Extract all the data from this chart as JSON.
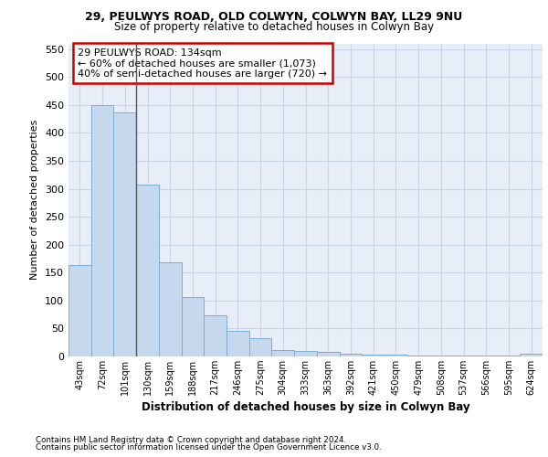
{
  "title1": "29, PEULWYS ROAD, OLD COLWYN, COLWYN BAY, LL29 9NU",
  "title2": "Size of property relative to detached houses in Colwyn Bay",
  "xlabel": "Distribution of detached houses by size in Colwyn Bay",
  "ylabel": "Number of detached properties",
  "categories": [
    "43sqm",
    "72sqm",
    "101sqm",
    "130sqm",
    "159sqm",
    "188sqm",
    "217sqm",
    "246sqm",
    "275sqm",
    "304sqm",
    "333sqm",
    "363sqm",
    "392sqm",
    "421sqm",
    "450sqm",
    "479sqm",
    "508sqm",
    "537sqm",
    "566sqm",
    "595sqm",
    "624sqm"
  ],
  "values": [
    163,
    450,
    437,
    307,
    168,
    106,
    74,
    45,
    33,
    11,
    9,
    8,
    5,
    4,
    3,
    2,
    2,
    2,
    1,
    1,
    5
  ],
  "bar_color": "#c5d8ed",
  "bar_edge_color": "#7aadd4",
  "annotation_line1": "29 PEULWYS ROAD: 134sqm",
  "annotation_line2": "← 60% of detached houses are smaller (1,073)",
  "annotation_line3": "40% of semi-detached houses are larger (720) →",
  "annotation_box_edge": "#cc0000",
  "vline_index": 2.5,
  "ylim_max": 560,
  "yticks": [
    0,
    50,
    100,
    150,
    200,
    250,
    300,
    350,
    400,
    450,
    500,
    550
  ],
  "grid_color": "#c8d4e8",
  "bg_color": "#e8eef8",
  "footer1": "Contains HM Land Registry data © Crown copyright and database right 2024.",
  "footer2": "Contains public sector information licensed under the Open Government Licence v3.0."
}
